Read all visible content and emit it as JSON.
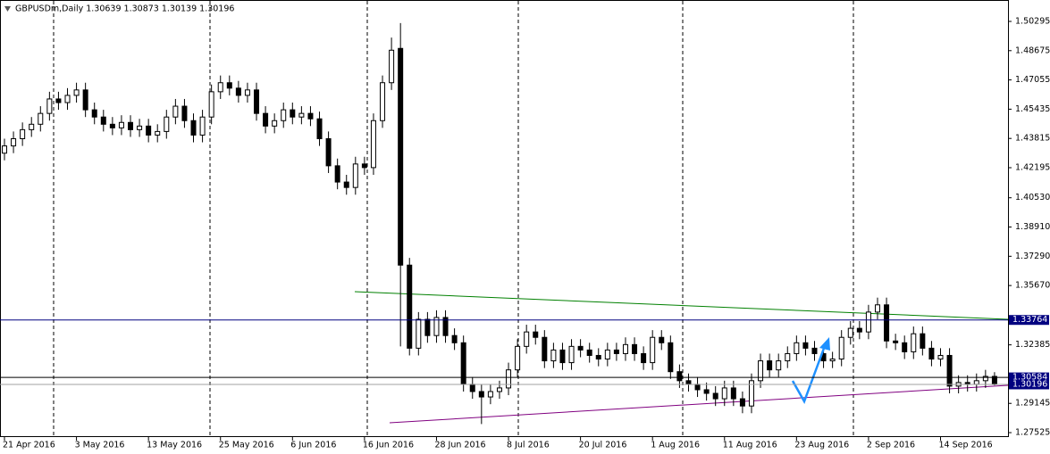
{
  "chart_data": {
    "type": "candlestick",
    "title": "GBPUSDm,Daily  1.30639 1.30873 1.30139 1.30196",
    "categories": [
      "21 Apr 2016",
      null,
      null,
      null,
      null,
      null,
      null,
      null,
      "3 May 2016",
      null,
      null,
      null,
      null,
      null,
      null,
      null,
      "13 May 2016",
      null,
      null,
      null,
      null,
      null,
      null,
      null,
      "25 May 2016",
      null,
      null,
      null,
      null,
      null,
      null,
      null,
      "6 Jun 2016",
      null,
      null,
      null,
      null,
      null,
      null,
      null,
      "16 Jun 2016",
      null,
      null,
      null,
      null,
      null,
      null,
      null,
      "28 Jun 2016",
      null,
      null,
      null,
      null,
      null,
      null,
      null,
      "8 Jul 2016",
      null,
      null,
      null,
      null,
      null,
      null,
      null,
      "20 Jul 2016",
      null,
      null,
      null,
      null,
      null,
      null,
      null,
      "1 Aug 2016",
      null,
      null,
      null,
      null,
      null,
      null,
      null,
      "11 Aug 2016",
      null,
      null,
      null,
      null,
      null,
      null,
      null,
      "23 Aug 2016",
      null,
      null,
      null,
      null,
      null,
      null,
      null,
      "2 Sep 2016",
      null,
      null,
      null,
      null,
      null,
      null,
      null,
      "14 Sep 2016",
      null,
      null,
      null,
      null,
      null,
      null
    ],
    "open": [
      1.43,
      1.434,
      1.438,
      1.443,
      1.446,
      1.452,
      1.46,
      1.458,
      1.462,
      1.465,
      1.454,
      1.45,
      1.446,
      1.444,
      1.447,
      1.443,
      1.445,
      1.44,
      1.442,
      1.45,
      1.456,
      1.448,
      1.44,
      1.45,
      1.464,
      1.469,
      1.466,
      1.462,
      1.465,
      1.452,
      1.445,
      1.448,
      1.454,
      1.45,
      1.452,
      1.449,
      1.438,
      1.423,
      1.414,
      1.411,
      1.424,
      1.422,
      1.448,
      1.469,
      1.488,
      1.368,
      1.322,
      1.338,
      1.329,
      1.339,
      1.329,
      1.325,
      1.302,
      1.298,
      1.295,
      1.298,
      1.3,
      1.31,
      1.323,
      1.331,
      1.328,
      1.315,
      1.321,
      1.314,
      1.323,
      1.321,
      1.318,
      1.316,
      1.321,
      1.319,
      1.324,
      1.319,
      1.314,
      1.328,
      1.325,
      1.309,
      1.304,
      1.302,
      1.299,
      1.297,
      1.294,
      1.3,
      1.294,
      1.29,
      1.304,
      1.315,
      1.31,
      1.315,
      1.319,
      1.325,
      1.322,
      1.319,
      1.315,
      1.316,
      1.328,
      1.333,
      1.331,
      1.342,
      1.346,
      1.326,
      1.325,
      1.32,
      1.33,
      1.322,
      1.316,
      1.318,
      1.301,
      1.303,
      1.302,
      1.304,
      1.30639
    ],
    "high": [
      1.438,
      1.442,
      1.447,
      1.45,
      1.456,
      1.464,
      1.464,
      1.466,
      1.469,
      1.469,
      1.458,
      1.454,
      1.45,
      1.451,
      1.451,
      1.449,
      1.449,
      1.446,
      1.454,
      1.46,
      1.46,
      1.452,
      1.454,
      1.468,
      1.473,
      1.473,
      1.47,
      1.469,
      1.469,
      1.456,
      1.452,
      1.458,
      1.458,
      1.456,
      1.456,
      1.453,
      1.442,
      1.427,
      1.418,
      1.428,
      1.428,
      1.452,
      1.473,
      1.494,
      1.502,
      1.372,
      1.342,
      1.342,
      1.343,
      1.343,
      1.333,
      1.329,
      1.306,
      1.302,
      1.302,
      1.304,
      1.314,
      1.327,
      1.335,
      1.335,
      1.332,
      1.325,
      1.325,
      1.327,
      1.327,
      1.325,
      1.322,
      1.325,
      1.325,
      1.328,
      1.328,
      1.323,
      1.332,
      1.332,
      1.329,
      1.313,
      1.308,
      1.306,
      1.303,
      1.301,
      1.304,
      1.304,
      1.298,
      1.308,
      1.319,
      1.319,
      1.319,
      1.323,
      1.329,
      1.329,
      1.326,
      1.323,
      1.32,
      1.332,
      1.337,
      1.337,
      1.346,
      1.35,
      1.35,
      1.33,
      1.329,
      1.334,
      1.334,
      1.326,
      1.322,
      1.322,
      1.307,
      1.307,
      1.308,
      1.31,
      1.30873
    ],
    "low": [
      1.426,
      1.43,
      1.434,
      1.439,
      1.442,
      1.448,
      1.454,
      1.454,
      1.458,
      1.45,
      1.446,
      1.442,
      1.44,
      1.44,
      1.439,
      1.439,
      1.436,
      1.436,
      1.438,
      1.446,
      1.444,
      1.436,
      1.436,
      1.446,
      1.46,
      1.462,
      1.458,
      1.458,
      1.448,
      1.441,
      1.441,
      1.444,
      1.446,
      1.446,
      1.445,
      1.434,
      1.419,
      1.41,
      1.407,
      1.407,
      1.418,
      1.418,
      1.444,
      1.465,
      1.323,
      1.318,
      1.318,
      1.325,
      1.325,
      1.325,
      1.321,
      1.298,
      1.294,
      1.28,
      1.291,
      1.294,
      1.296,
      1.306,
      1.319,
      1.324,
      1.311,
      1.311,
      1.31,
      1.31,
      1.317,
      1.314,
      1.312,
      1.312,
      1.315,
      1.315,
      1.315,
      1.31,
      1.31,
      1.321,
      1.305,
      1.3,
      1.298,
      1.295,
      1.293,
      1.29,
      1.29,
      1.29,
      1.286,
      1.286,
      1.3,
      1.306,
      1.306,
      1.311,
      1.315,
      1.318,
      1.315,
      1.311,
      1.311,
      1.312,
      1.324,
      1.327,
      1.327,
      1.338,
      1.322,
      1.321,
      1.316,
      1.316,
      1.318,
      1.312,
      1.312,
      1.297,
      1.297,
      1.298,
      1.298,
      1.3,
      1.30139
    ],
    "close": [
      1.434,
      1.438,
      1.443,
      1.446,
      1.452,
      1.46,
      1.458,
      1.462,
      1.465,
      1.454,
      1.45,
      1.446,
      1.444,
      1.447,
      1.443,
      1.445,
      1.44,
      1.442,
      1.45,
      1.456,
      1.448,
      1.44,
      1.45,
      1.464,
      1.469,
      1.466,
      1.462,
      1.465,
      1.452,
      1.445,
      1.448,
      1.454,
      1.45,
      1.452,
      1.449,
      1.438,
      1.423,
      1.414,
      1.411,
      1.424,
      1.422,
      1.448,
      1.469,
      1.487,
      1.368,
      1.322,
      1.338,
      1.329,
      1.339,
      1.329,
      1.325,
      1.302,
      1.298,
      1.295,
      1.298,
      1.3,
      1.31,
      1.323,
      1.331,
      1.328,
      1.315,
      1.321,
      1.314,
      1.323,
      1.321,
      1.318,
      1.316,
      1.321,
      1.319,
      1.324,
      1.319,
      1.314,
      1.328,
      1.325,
      1.309,
      1.304,
      1.302,
      1.299,
      1.297,
      1.294,
      1.3,
      1.294,
      1.29,
      1.304,
      1.315,
      1.31,
      1.315,
      1.319,
      1.325,
      1.322,
      1.319,
      1.315,
      1.316,
      1.328,
      1.333,
      1.331,
      1.342,
      1.346,
      1.326,
      1.325,
      1.32,
      1.33,
      1.322,
      1.316,
      1.318,
      1.301,
      1.303,
      1.302,
      1.304,
      1.30639,
      1.30196
    ],
    "ylim": [
      1.2728,
      1.5148
    ],
    "yticks": [
      1.50295,
      1.48675,
      1.47055,
      1.45435,
      1.43815,
      1.42195,
      {
        "value": 1.4053,
        "label": "1.40530"
      },
      {
        "value": 1.3891,
        "label": "1.38910"
      },
      {
        "value": 1.3729,
        "label": "1.37290"
      },
      {
        "value": 1.3567,
        "label": "1.35670"
      },
      1.32385,
      1.29145,
      1.27525
    ],
    "price_markers": [
      {
        "value": 1.33764,
        "color": "#000080"
      },
      {
        "value": 1.30584,
        "color": "#000000"
      },
      {
        "value": 1.30196,
        "color": "#a0a0a0"
      }
    ],
    "grid": false
  }
}
